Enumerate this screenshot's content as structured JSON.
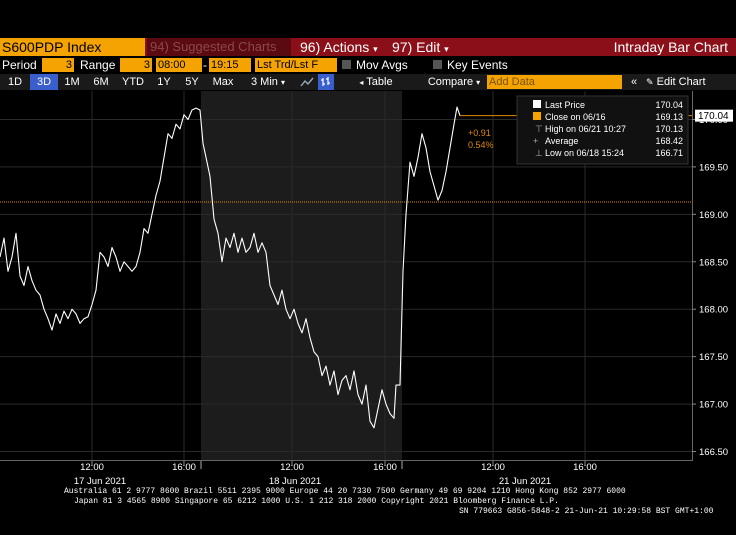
{
  "toolbar": {
    "ticker": "S600PDP Index",
    "suggested": "94) Suggested Charts",
    "actions": "96) Actions",
    "edit": "97) Edit",
    "title": "Intraday Bar Chart"
  },
  "controls": {
    "period_label": "Period",
    "period_value": "3",
    "range_label": "Range",
    "range_value": "3",
    "time_from": "08:00",
    "time_to": "19:15",
    "mode": "Lst Trd/Lst F",
    "mov_avgs": "Mov Avgs",
    "key_events": "Key Events"
  },
  "range_tabs": [
    "1D",
    "3D",
    "1M",
    "6M",
    "YTD",
    "1Y",
    "5Y",
    "Max"
  ],
  "active_range": "3D",
  "interval": "3 Min",
  "table_label": "Table",
  "compare_label": "Compare",
  "add_data_placeholder": "Add Data",
  "edit_chart_label": "Edit Chart",
  "legend": {
    "last_price_label": "Last Price",
    "last_price_value": "170.04",
    "close_label": "Close on 06/16",
    "close_value": "169.13",
    "high_label": "High on 06/21 10:27",
    "high_value": "170.13",
    "avg_label": "Average",
    "avg_value": "168.42",
    "low_label": "Low on 06/18 15:24",
    "low_value": "166.71"
  },
  "change": {
    "abs": "+0.91",
    "pct": "0.54%"
  },
  "colors": {
    "bloomberg_orange": "#f4a300",
    "header_red": "#8b0f18",
    "reference_line": "#e08a00",
    "active_tab": "#3a5fcd"
  },
  "footer": {
    "line1": "Australia 61 2 9777 8600 Brazil 5511 2395 9000 Europe 44 20 7330 7500 Germany 49 69 9204 1210 Hong Kong 852 2977 6000",
    "line2": "Japan 81 3 4565 8900        Singapore 65 6212 1000        U.S. 1 212 318 2000         Copyright 2021 Bloomberg Finance L.P.",
    "line3": "SN 779663 G856-5848-2 21-Jun-21 10:29:58 BST  GMT+1:00"
  },
  "chart_data": {
    "type": "line",
    "title": "",
    "ylim": [
      166.4,
      170.3
    ],
    "y_ticks": [
      "170.00",
      "169.50",
      "169.00",
      "168.50",
      "168.00",
      "167.50",
      "167.00",
      "166.50"
    ],
    "x_ticks": [
      "12:00",
      "16:00",
      "12:00",
      "16:00",
      "12:00",
      "16:00"
    ],
    "day_labels": [
      "17 Jun 2021",
      "18 Jun 2021",
      "21 Jun 2021"
    ],
    "reference_line": 169.13,
    "last_value": 170.04,
    "series": [
      {
        "values": [
          [
            0,
            168.55
          ],
          [
            4,
            168.75
          ],
          [
            8,
            168.4
          ],
          [
            12,
            168.55
          ],
          [
            16,
            168.8
          ],
          [
            20,
            168.35
          ],
          [
            24,
            168.25
          ],
          [
            28,
            168.45
          ],
          [
            32,
            168.3
          ],
          [
            36,
            168.2
          ],
          [
            40,
            168.15
          ],
          [
            44,
            168.0
          ],
          [
            48,
            167.9
          ],
          [
            52,
            167.78
          ],
          [
            56,
            167.95
          ],
          [
            60,
            167.85
          ],
          [
            64,
            167.98
          ],
          [
            68,
            167.9
          ],
          [
            72,
            168.0
          ],
          [
            76,
            167.95
          ],
          [
            80,
            167.85
          ],
          [
            84,
            167.9
          ],
          [
            88,
            167.92
          ],
          [
            92,
            168.05
          ],
          [
            96,
            168.2
          ],
          [
            100,
            168.6
          ],
          [
            104,
            168.55
          ],
          [
            108,
            168.45
          ],
          [
            112,
            168.65
          ],
          [
            116,
            168.55
          ],
          [
            120,
            168.4
          ],
          [
            124,
            168.5
          ],
          [
            128,
            168.45
          ],
          [
            132,
            168.4
          ],
          [
            136,
            168.45
          ],
          [
            140,
            168.6
          ],
          [
            144,
            168.85
          ],
          [
            148,
            168.8
          ],
          [
            152,
            169.0
          ],
          [
            156,
            169.2
          ],
          [
            160,
            169.35
          ],
          [
            164,
            169.6
          ],
          [
            168,
            169.85
          ],
          [
            172,
            169.8
          ],
          [
            176,
            169.95
          ],
          [
            180,
            169.9
          ],
          [
            184,
            170.05
          ],
          [
            188,
            170.0
          ],
          [
            192,
            170.1
          ],
          [
            196,
            170.12
          ],
          [
            200,
            170.1
          ],
          [
            203,
            169.75
          ],
          [
            206,
            169.6
          ],
          [
            210,
            169.4
          ],
          [
            214,
            168.95
          ],
          [
            218,
            168.8
          ],
          [
            222,
            168.5
          ],
          [
            226,
            168.75
          ],
          [
            230,
            168.65
          ],
          [
            234,
            168.8
          ],
          [
            238,
            168.6
          ],
          [
            242,
            168.75
          ],
          [
            246,
            168.6
          ],
          [
            250,
            168.65
          ],
          [
            254,
            168.8
          ],
          [
            258,
            168.6
          ],
          [
            262,
            168.7
          ],
          [
            266,
            168.6
          ],
          [
            270,
            168.25
          ],
          [
            274,
            168.15
          ],
          [
            278,
            168.05
          ],
          [
            282,
            168.2
          ],
          [
            286,
            168.0
          ],
          [
            290,
            167.9
          ],
          [
            294,
            168.0
          ],
          [
            298,
            167.85
          ],
          [
            302,
            167.75
          ],
          [
            306,
            167.9
          ],
          [
            310,
            167.7
          ],
          [
            314,
            167.55
          ],
          [
            318,
            167.5
          ],
          [
            322,
            167.3
          ],
          [
            326,
            167.4
          ],
          [
            330,
            167.2
          ],
          [
            334,
            167.35
          ],
          [
            338,
            167.1
          ],
          [
            342,
            167.25
          ],
          [
            346,
            167.3
          ],
          [
            350,
            167.15
          ],
          [
            354,
            167.35
          ],
          [
            358,
            167.1
          ],
          [
            362,
            167.0
          ],
          [
            366,
            167.2
          ],
          [
            370,
            166.82
          ],
          [
            374,
            166.75
          ],
          [
            378,
            166.95
          ],
          [
            382,
            167.15
          ],
          [
            386,
            167.0
          ],
          [
            390,
            166.9
          ],
          [
            394,
            166.85
          ],
          [
            396,
            167.2
          ],
          [
            400,
            167.2
          ],
          [
            403,
            168.4
          ],
          [
            406,
            169.0
          ],
          [
            410,
            169.55
          ],
          [
            414,
            169.4
          ],
          [
            418,
            169.6
          ],
          [
            422,
            169.85
          ],
          [
            426,
            169.7
          ],
          [
            430,
            169.45
          ],
          [
            434,
            169.3
          ],
          [
            438,
            169.15
          ],
          [
            442,
            169.25
          ],
          [
            446,
            169.45
          ],
          [
            450,
            169.7
          ],
          [
            454,
            169.95
          ],
          [
            457,
            170.13
          ],
          [
            460,
            170.04
          ]
        ]
      }
    ]
  }
}
